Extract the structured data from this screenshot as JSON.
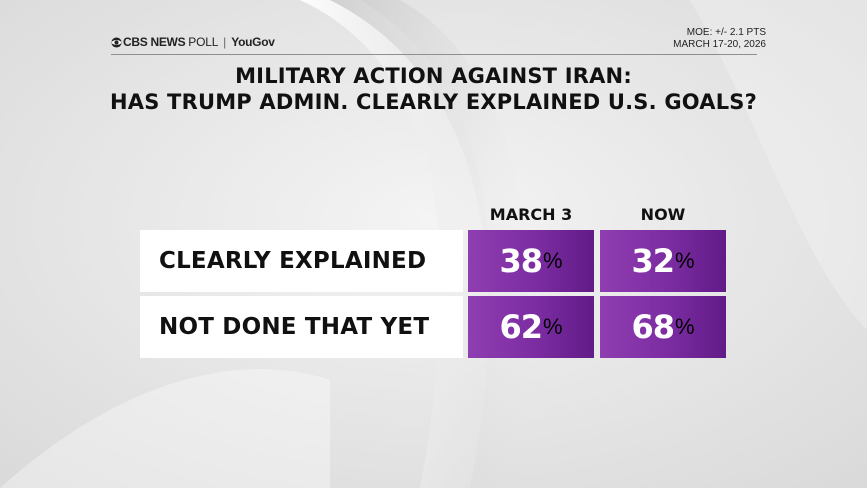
{
  "header": {
    "brand": "CBS NEWS",
    "poll": "POLL",
    "separator": "|",
    "partner": "YouGov",
    "moe": "MOE: +/- 2.1 PTS",
    "dates": "MARCH 17-20, 2026"
  },
  "title": {
    "line1": "MILITARY ACTION AGAINST IRAN:",
    "line2": "HAS TRUMP ADMIN. CLEARLY EXPLAINED U.S. GOALS?"
  },
  "colors": {
    "cell": "#7b2ca1",
    "label_bg": "#ffffff",
    "text": "#111111"
  },
  "chart_data": {
    "type": "table",
    "title": "MILITARY ACTION AGAINST IRAN: HAS TRUMP ADMIN. CLEARLY EXPLAINED U.S. GOALS?",
    "columns": [
      "MARCH 3",
      "NOW"
    ],
    "unit": "%",
    "rows": [
      {
        "label": "CLEARLY EXPLAINED",
        "values": [
          38,
          32
        ]
      },
      {
        "label": "NOT DONE THAT YET",
        "values": [
          62,
          68
        ]
      }
    ]
  }
}
